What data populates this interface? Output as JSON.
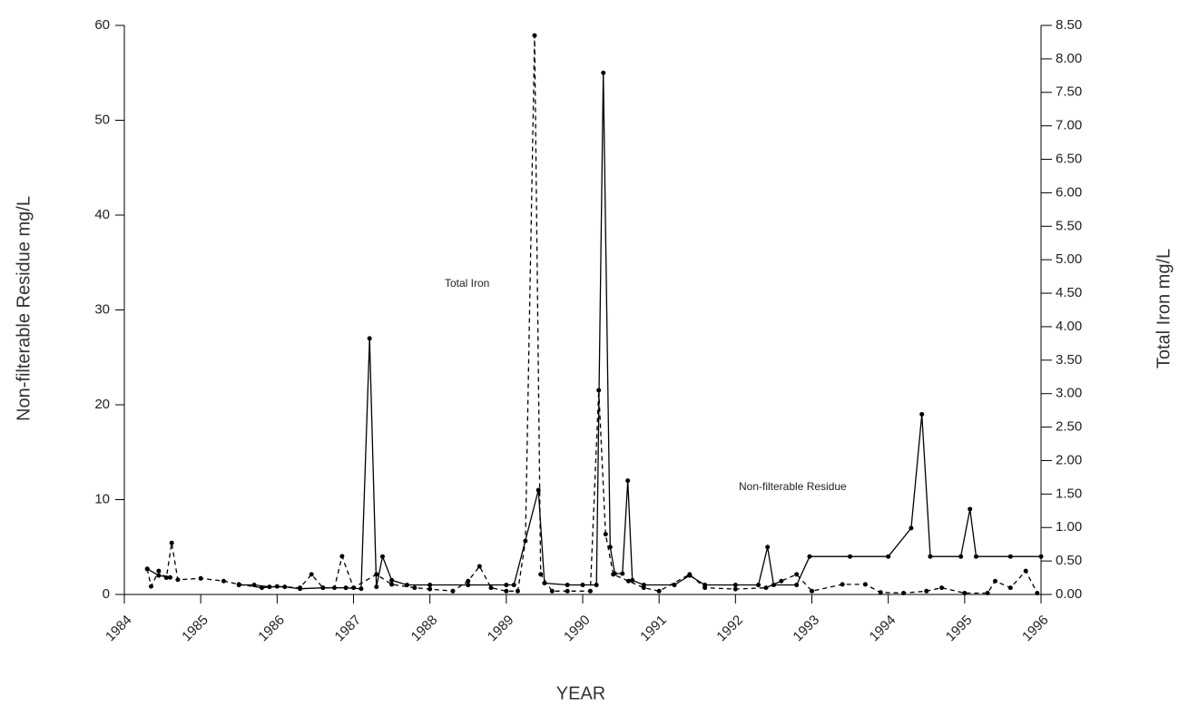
{
  "chart_data": {
    "type": "line",
    "xlabel": "YEAR",
    "ylabel": "Non-filterable Residue mg/L",
    "y2label": "Total Iron mg/L",
    "xlim": [
      1984,
      1996
    ],
    "xticks": [
      1984,
      1985,
      1986,
      1987,
      1988,
      1989,
      1990,
      1991,
      1992,
      1993,
      1994,
      1995,
      1996
    ],
    "ylim": [
      0,
      60
    ],
    "yticks": [
      0,
      10,
      20,
      30,
      40,
      50,
      60
    ],
    "y2lim": [
      0,
      8.5
    ],
    "y2ticks": [
      {
        "value": 0,
        "label": "0.00"
      },
      {
        "value": 0.5,
        "label": "0.50"
      },
      {
        "value": 1,
        "label": "1.00"
      },
      {
        "value": 1.5,
        "label": "1.50"
      },
      {
        "value": 2,
        "label": "2.00"
      },
      {
        "value": 2.5,
        "label": "2.50"
      },
      {
        "value": 3,
        "label": "3.00"
      },
      {
        "value": 3.5,
        "label": "3.50"
      },
      {
        "value": 4,
        "label": "4.00"
      },
      {
        "value": 4.5,
        "label": "4.50"
      },
      {
        "value": 5,
        "label": "5.00"
      },
      {
        "value": 5.5,
        "label": "5.50"
      },
      {
        "value": 6,
        "label": "6.00"
      },
      {
        "value": 6.5,
        "label": "6.50"
      },
      {
        "value": 7,
        "label": "7.00"
      },
      {
        "value": 7.5,
        "label": "7.50"
      },
      {
        "value": 8,
        "label": "8.00"
      },
      {
        "value": 8.5,
        "label": "8.50"
      }
    ],
    "series": [
      {
        "name": "Non-filterable Residue",
        "color": "#000000",
        "dashed": false,
        "axis": "y",
        "x": [
          1984.3,
          1984.45,
          1984.6,
          1985.0,
          1985.5,
          1985.7,
          1985.9,
          1986.1,
          1986.3,
          1986.6,
          1986.9,
          1987.1,
          1987.21,
          1987.3,
          1987.38,
          1987.5,
          1987.7,
          1988.0,
          1988.5,
          1989.0,
          1989.1,
          1989.42,
          1989.5,
          1989.8,
          1990.0,
          1990.18,
          1990.27,
          1990.36,
          1990.42,
          1990.52,
          1990.59,
          1990.65,
          1990.8,
          1991.2,
          1991.4,
          1991.6,
          1992.0,
          1992.3,
          1992.42,
          1992.5,
          1992.8,
          1992.97,
          1993.5,
          1994.0,
          1994.3,
          1994.44,
          1994.55,
          1994.95,
          1995.07,
          1995.15,
          1995.6,
          1996.0
        ],
        "values": [
          2.7,
          2.0,
          1.8,
          null,
          1.0,
          1.0,
          0.8,
          0.8,
          0.6,
          0.7,
          0.7,
          0.6,
          27,
          0.8,
          4,
          1.5,
          1.0,
          1.0,
          1.0,
          1.0,
          1.0,
          11,
          1.2,
          1.0,
          1.0,
          1.0,
          55,
          5,
          2.2,
          2.2,
          12,
          1.5,
          1.0,
          1.0,
          2.0,
          1.0,
          1.0,
          1.0,
          5,
          1.0,
          1.0,
          4,
          4,
          4,
          7,
          19,
          4,
          4,
          9,
          4,
          4,
          4
        ]
      },
      {
        "name": "Total Iron",
        "color": "#000000",
        "dashed": true,
        "axis": "y2",
        "x": [
          1984.3,
          1984.35,
          1984.45,
          1984.55,
          1984.62,
          1984.7,
          1985.0,
          1985.3,
          1985.5,
          1985.8,
          1986.0,
          1986.3,
          1986.45,
          1986.6,
          1986.75,
          1986.85,
          1987.0,
          1987.3,
          1987.5,
          1987.8,
          1988.0,
          1988.3,
          1988.5,
          1988.65,
          1988.8,
          1989.0,
          1989.15,
          1989.25,
          1989.37,
          1989.45,
          1989.6,
          1989.8,
          1990.1,
          1990.21,
          1990.3,
          1990.4,
          1990.6,
          1990.8,
          1991.0,
          1991.4,
          1991.6,
          1992.0,
          1992.4,
          1992.6,
          1992.8,
          1993.0,
          1993.4,
          1993.7,
          1993.9,
          1994.2,
          1994.5,
          1994.7,
          1995.0,
          1995.3,
          1995.4,
          1995.6,
          1995.8,
          1995.95
        ],
        "values": [
          0.38,
          0.12,
          0.35,
          0.25,
          0.77,
          0.22,
          0.24,
          0.2,
          0.15,
          0.1,
          0.12,
          0.1,
          0.3,
          0.1,
          0.1,
          0.57,
          0.1,
          0.3,
          0.15,
          0.1,
          0.08,
          0.05,
          0.2,
          0.42,
          0.1,
          0.05,
          0.05,
          0.8,
          8.35,
          0.3,
          0.05,
          0.05,
          0.05,
          3.05,
          0.9,
          0.3,
          0.2,
          0.1,
          0.05,
          0.3,
          0.1,
          0.08,
          0.1,
          0.2,
          0.3,
          0.05,
          0.15,
          0.15,
          0.03,
          0.02,
          0.05,
          0.1,
          0.02,
          0.02,
          0.2,
          0.1,
          0.35,
          0.02
        ]
      }
    ]
  }
}
